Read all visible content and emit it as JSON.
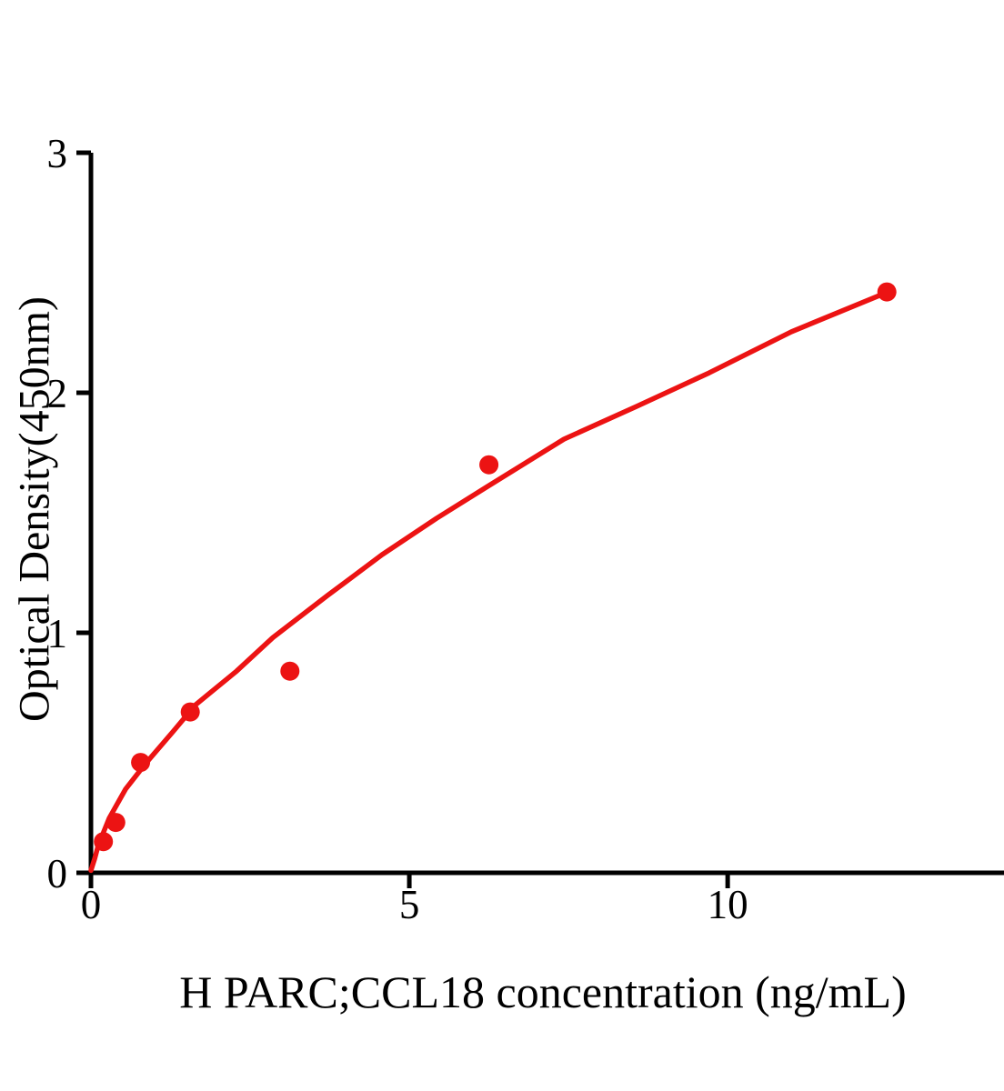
{
  "figure": {
    "background_color": "#ffffff",
    "text_color": "#000000"
  },
  "chart_data": {
    "type": "scatter",
    "title": "",
    "xlabel": "H PARC;CCL18 concentration (ng/mL)",
    "ylabel": "Optical Density(450nm)",
    "xlim": [
      0,
      14.34
    ],
    "ylim": [
      0,
      3
    ],
    "xticks": [
      0,
      5,
      10
    ],
    "xtick_labels": [
      "0",
      "5",
      "10"
    ],
    "yticks": [
      0,
      1,
      2,
      3
    ],
    "ytick_labels": [
      "0",
      "1",
      "2",
      "3"
    ],
    "grid": false,
    "legend": "none",
    "axis_color": "#000000",
    "point_color": "#EC1313",
    "curve_color": "#EC1313",
    "points": [
      {
        "x": 0.195,
        "y": 0.13
      },
      {
        "x": 0.39,
        "y": 0.21
      },
      {
        "x": 0.78,
        "y": 0.46
      },
      {
        "x": 1.56,
        "y": 0.67
      },
      {
        "x": 3.125,
        "y": 0.84
      },
      {
        "x": 6.25,
        "y": 1.7
      },
      {
        "x": 12.5,
        "y": 2.42
      }
    ],
    "fit_curve": [
      [
        0.0,
        0.01
      ],
      [
        0.06,
        0.06
      ],
      [
        0.114,
        0.114
      ],
      [
        0.286,
        0.227
      ],
      [
        0.543,
        0.348
      ],
      [
        0.857,
        0.455
      ],
      [
        1.286,
        0.587
      ],
      [
        1.643,
        0.7
      ],
      [
        2.286,
        0.84
      ],
      [
        2.857,
        0.98
      ],
      [
        3.714,
        1.155
      ],
      [
        4.571,
        1.325
      ],
      [
        5.429,
        1.477
      ],
      [
        6.23,
        1.61
      ],
      [
        7.43,
        1.807
      ],
      [
        8.57,
        1.943
      ],
      [
        9.71,
        2.083
      ],
      [
        11.0,
        2.254
      ],
      [
        12.49,
        2.417
      ]
    ]
  }
}
